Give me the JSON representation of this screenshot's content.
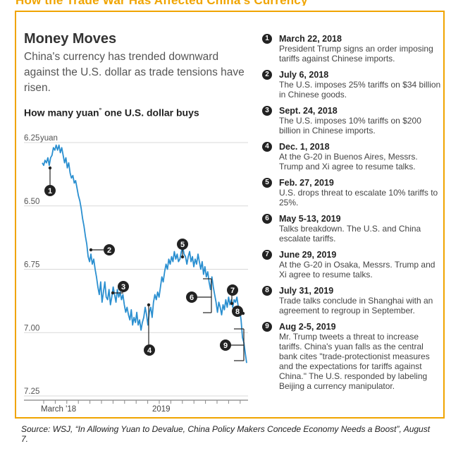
{
  "header_fragment": "How the Trade War Has Affected China's Currency",
  "title": "Money Moves",
  "subtitle": "China's currency has trended downward against the U.S. dollar as trade tensions have risen.",
  "chart_heading": "How many yuan",
  "chart_heading_mark": "°",
  "chart_heading_tail": " one U.S. dollar buys",
  "colors": {
    "line": "#2a8fd0",
    "frame": "#f0a400",
    "marker": "#222222"
  },
  "chart_data": {
    "type": "line",
    "title": "How many yuan° one U.S. dollar buys",
    "y_unit": "yuan",
    "y_inverted": true,
    "ylim": [
      6.25,
      7.25
    ],
    "yticks": [
      "6.25",
      "6.50",
      "6.75",
      "7.00",
      "7.25"
    ],
    "xtick_labels": [
      "March '18",
      "2019"
    ],
    "grid": true,
    "series": [
      {
        "values": [
          6.33,
          6.34,
          6.32,
          6.33,
          6.31,
          6.34,
          6.31,
          6.3,
          6.27,
          6.28,
          6.26,
          6.28,
          6.26,
          6.29,
          6.27,
          6.3,
          6.33,
          6.31,
          6.35,
          6.33,
          6.37,
          6.39,
          6.38,
          6.41,
          6.4,
          6.43,
          6.46,
          6.48,
          6.51,
          6.55,
          6.58,
          6.62,
          6.65,
          6.7,
          6.72,
          6.69,
          6.73,
          6.71,
          6.75,
          6.78,
          6.82,
          6.85,
          6.8,
          6.88,
          6.84,
          6.8,
          6.86,
          6.87,
          6.83,
          6.89,
          6.86,
          6.82,
          6.85,
          6.88,
          6.83,
          6.86,
          6.84,
          6.87,
          6.85,
          6.89,
          6.92,
          6.9,
          6.93,
          6.95,
          6.91,
          6.97,
          6.94,
          6.96,
          6.92,
          6.97,
          6.95,
          6.99,
          6.96,
          6.94,
          6.9,
          6.93,
          6.97,
          6.92,
          6.9,
          6.94,
          6.88,
          6.85,
          6.87,
          6.84,
          6.86,
          6.82,
          6.78,
          6.8,
          6.76,
          6.73,
          6.75,
          6.71,
          6.73,
          6.7,
          6.72,
          6.68,
          6.71,
          6.69,
          6.72,
          6.71,
          6.68,
          6.66,
          6.69,
          6.7,
          6.73,
          6.7,
          6.68,
          6.72,
          6.7,
          6.74,
          6.71,
          6.73,
          6.69,
          6.72,
          6.75,
          6.72,
          6.77,
          6.74,
          6.78,
          6.76,
          6.8,
          6.83,
          6.78,
          6.82,
          6.85,
          6.88,
          6.92,
          6.88,
          6.9,
          6.93,
          6.89,
          6.91,
          6.87,
          6.9,
          6.86,
          6.89,
          6.87,
          6.9,
          6.87,
          6.88,
          6.86,
          6.9,
          6.91,
          6.95,
          7.02,
          7.04,
          7.08,
          7.12
        ]
      }
    ],
    "annotations": [
      {
        "id": "1",
        "date": "March 22, 2018",
        "text": "President Trump signs an order imposing tariffs against Chinese imports."
      },
      {
        "id": "2",
        "date": "July 6, 2018",
        "text": "The U.S. imposes 25% tariffs on $34 billion in Chinese goods."
      },
      {
        "id": "3",
        "date": "Sept. 24, 2018",
        "text": "The U.S. imposes 10% tariffs on $200 billion in Chinese imports."
      },
      {
        "id": "4",
        "date": "Dec. 1, 2018",
        "text": "At the G-20 in Buenos Aires, Messrs. Trump and Xi agree to resume talks."
      },
      {
        "id": "5",
        "date": "Feb. 27, 2019",
        "text": "U.S. drops threat to escalate 10% tariffs to 25%."
      },
      {
        "id": "6",
        "date": "May 5-13, 2019",
        "text": "Talks breakdown. The U.S. and China escalate tariffs."
      },
      {
        "id": "7",
        "date": "June 29, 2019",
        "text": "At the G-20 in Osaka, Messrs. Trump and Xi agree to resume talks."
      },
      {
        "id": "8",
        "date": "July 31, 2019",
        "text": "Trade talks conclude in Shanghai with an agreement to regroup in September."
      },
      {
        "id": "9",
        "date": "Aug 2-5, 2019",
        "text": "Mr. Trump tweets a threat to increase tariffs. China's yuan falls as the central bank cites \"trade-protectionist measures and the expectations for tariffs against China.\" The U.S. responded by labeling Beijing a currency manipulator."
      }
    ]
  },
  "source": "Source: WSJ, “In Allowing Yuan to Devalue, China Policy Makers Concede Economy Needs a Boost”, August 7."
}
